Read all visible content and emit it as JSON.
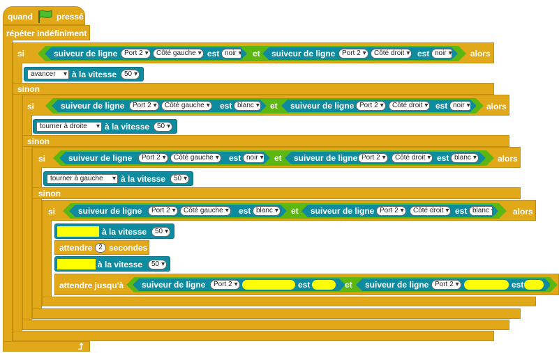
{
  "hat": {
    "label": "quand",
    "label2": "pressé"
  },
  "forever": {
    "label": "répéter indéfiniment"
  },
  "kw": {
    "if": "si",
    "then": "alors",
    "else": "sinon",
    "and": "et",
    "is": "est",
    "speed": "à la vitesse",
    "wait": "attendre",
    "seconds": "secondes",
    "wait_until": "attendre jusqu'à",
    "sensor": "suiveur de ligne"
  },
  "colors": {
    "control": "#E1A91A",
    "motion": "#0F8BA0",
    "operator": "#5CB712",
    "placeholder": "#FFFF00"
  },
  "if1": {
    "a_port": "Port 2",
    "a_side": "Côté gauche",
    "a_val": "noir",
    "b_port": "Port 2",
    "b_side": "Côté droit",
    "b_val": "noir"
  },
  "move1": {
    "action": "avancer",
    "speed": "50"
  },
  "if2": {
    "a_port": "Port 2",
    "a_side": "Côté gauche",
    "a_val": "blanc",
    "b_port": "Port 2",
    "b_side": "Côté droit",
    "b_val": "noir"
  },
  "move2": {
    "action": "tourner à droite",
    "speed": "50"
  },
  "if3": {
    "a_port": "Port 2",
    "a_side": "Côté gauche",
    "a_val": "noir",
    "b_port": "Port 2",
    "b_side": "Côté droit",
    "b_val": "blanc"
  },
  "move3": {
    "action": "tourner à gauche",
    "speed": "50"
  },
  "if4": {
    "a_port": "Port 2",
    "a_side": "Côté gauche",
    "a_val": "blanc",
    "b_port": "Port 2",
    "b_side": "Côté droit",
    "b_val": "blanc"
  },
  "move4": {
    "speed": "50"
  },
  "wait1": {
    "seconds": "2"
  },
  "move5": {
    "speed": "50"
  },
  "until": {
    "a_port": "Port 2",
    "b_port": "Port 2"
  }
}
